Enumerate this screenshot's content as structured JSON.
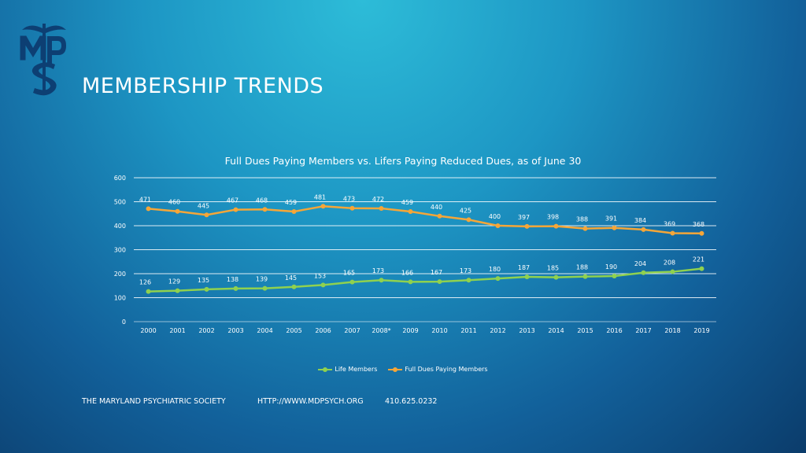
{
  "header": {
    "title": "MEMBERSHIP TRENDS",
    "logo_text": "MPS"
  },
  "chart_data": {
    "type": "line",
    "title": "Full Dues Paying Members vs. Lifers Paying Reduced Dues, as of June 30",
    "xlabel": "",
    "ylabel": "",
    "ylim": [
      0,
      600
    ],
    "yticks": [
      0,
      100,
      200,
      300,
      400,
      500,
      600
    ],
    "grid": true,
    "legend_position": "bottom",
    "categories": [
      "2000",
      "2001",
      "2002",
      "2003",
      "2004",
      "2005",
      "2006",
      "2007",
      "2008*",
      "2009",
      "2010",
      "2011",
      "2012",
      "2013",
      "2014",
      "2015",
      "2016",
      "2017",
      "2018",
      "2019"
    ],
    "series": [
      {
        "name": "Life Members",
        "color": "#8fd14f",
        "values": [
          126,
          129,
          135,
          138,
          139,
          145,
          153,
          165,
          173,
          166,
          167,
          173,
          180,
          187,
          185,
          188,
          190,
          204,
          208,
          221
        ]
      },
      {
        "name": "Full Dues Paying Members",
        "color": "#f5a638",
        "values": [
          471,
          460,
          445,
          467,
          468,
          459,
          481,
          473,
          472,
          459,
          440,
          425,
          400,
          397,
          398,
          388,
          391,
          384,
          369,
          368
        ]
      }
    ]
  },
  "footer": {
    "org": "THE MARYLAND PSYCHIATRIC SOCIETY",
    "url": "HTTP://WWW.MDPSYCH.ORG",
    "phone": "410.625.0232"
  }
}
